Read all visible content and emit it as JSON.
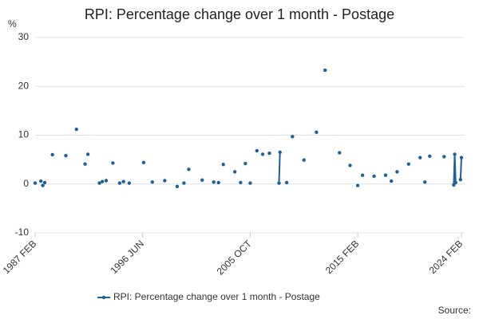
{
  "chart_data": {
    "type": "line",
    "title": "RPI: Percentage change over 1 month - Postage",
    "y_label": "%",
    "source": "Source:",
    "x": [
      "1987 FEB",
      "1987 AUG",
      "1987 OCT",
      "1987 DEC",
      "1988 AUG",
      "1989 OCT",
      "1990 SEP",
      "1991 JUN",
      "1991 SEP",
      "1992 SEP",
      "1992 DEC",
      "1993 APR",
      "1993 NOV",
      "1994 JUN",
      "1994 OCT",
      "1995 APR",
      "1996 JUL",
      "1997 APR",
      "1998 MAY",
      "1999 JUN",
      "2000 JAN",
      "2000 JUN",
      "2001 AUG",
      "2002 AUG",
      "2003 JAN",
      "2003 JUN",
      "2004 JUN",
      "2004 DEC",
      "2005 MAY",
      "2005 OCT",
      "2006 MAY",
      "2006 NOV",
      "2007 JUN",
      "2008 APR",
      "2008 MAY",
      "2008 DEC",
      "2009 JUN",
      "2010 JUN",
      "2011 JUL",
      "2012 APR",
      "2013 JUL",
      "2014 JUN",
      "2015 FEB",
      "2015 JUL",
      "2016 JUL",
      "2017 JUL",
      "2018 JAN",
      "2018 JUL",
      "2019 JUL",
      "2020 JUL",
      "2020 DEC",
      "2021 MAY",
      "2022 AUG",
      "2023 JUN",
      "2023 JUL",
      "2023 AUG",
      "2024 JAN",
      "2024 FEB"
    ],
    "series": [
      {
        "name": "RPI: Percentage change over 1 month - Postage",
        "color": "#206095",
        "values": [
          0.2,
          0.6,
          -0.3,
          0.3,
          6,
          5.8,
          11.2,
          4.1,
          6.1,
          0.2,
          0.5,
          0.7,
          4.3,
          0.2,
          0.5,
          0.2,
          4.4,
          0.4,
          0.7,
          -0.5,
          0.2,
          3,
          0.8,
          0.4,
          0.3,
          4,
          2.5,
          0.3,
          4.2,
          0.2,
          6.8,
          6.1,
          6.3,
          0.2,
          6.5,
          0.3,
          9.7,
          4.9,
          10.6,
          23.3,
          6.4,
          3.8,
          -0.3,
          1.8,
          1.6,
          1.8,
          0.6,
          2.5,
          4.1,
          5.4,
          0.4,
          5.7,
          5.6,
          -0.2,
          6.1,
          0.3,
          0.9,
          5.4
        ]
      }
    ],
    "xlim": [
      "1987 FEB",
      "2024 FEB"
    ],
    "xticks": [
      "1987 FEB",
      "1996 JUN",
      "2005 OCT",
      "2015 FEB",
      "2024 FEB"
    ],
    "ylim": [
      -10,
      30
    ],
    "yticks": [
      -10,
      0,
      10,
      20,
      30
    ],
    "grid": true,
    "legend": "bottom"
  }
}
